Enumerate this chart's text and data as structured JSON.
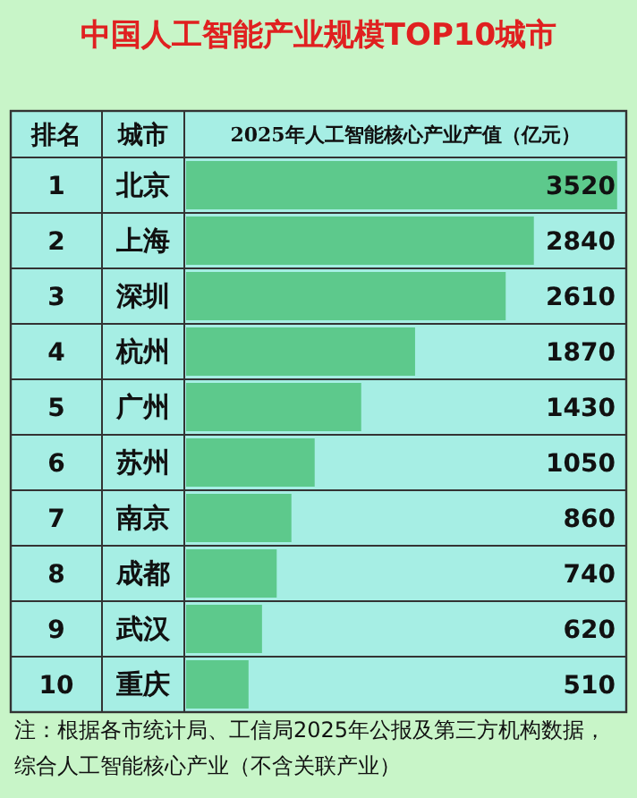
{
  "chart_data": {
    "type": "bar",
    "orientation": "horizontal",
    "title": "中国人工智能产业规模TOP10城市",
    "xlabel": "2025年人工智能核心产业产值（亿元）",
    "ylabel": "城市",
    "y2label": "排名",
    "categories": [
      "北京",
      "上海",
      "深圳",
      "杭州",
      "广州",
      "苏州",
      "南京",
      "成都",
      "武汉",
      "重庆"
    ],
    "y2_categories": [
      "1",
      "2",
      "3",
      "4",
      "5",
      "6",
      "7",
      "8",
      "9",
      "10"
    ],
    "values": [
      3520,
      2840,
      2610,
      1870,
      1430,
      1050,
      860,
      740,
      620,
      510
    ],
    "color": "#5dc98c",
    "xlim": [
      0,
      3580
    ],
    "data_labels": true,
    "annotations": [
      "注：根据各市统计局、工信局2025年公报及第三方机构数据，综合人工智能核心产业（不含关联产业）"
    ]
  }
}
